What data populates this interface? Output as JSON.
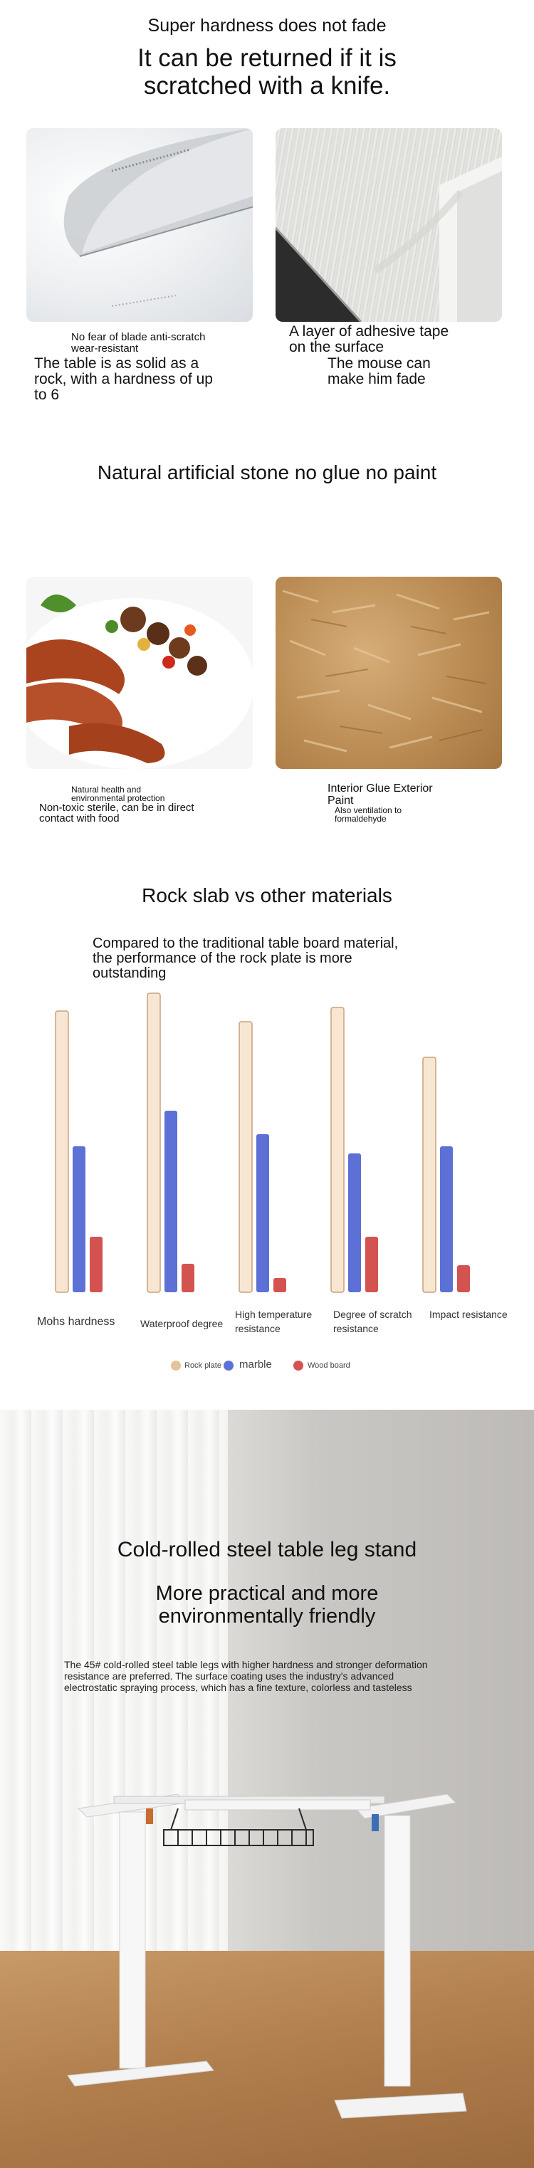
{
  "section1": {
    "kicker": "Super hardness does not fade",
    "headline_line1": "It can be returned if it is",
    "headline_line2": "scratched with a knife.",
    "left_caption_small_line1": "No fear of blade anti-scratch",
    "left_caption_small_line2": "wear-resistant",
    "left_caption_large_line1": "The table is as solid as a",
    "left_caption_large_line2": "rock, with a hardness of up",
    "left_caption_large_line3": "to 6",
    "right_caption_line1": "A layer of adhesive tape",
    "right_caption_line2": "on the surface",
    "right_caption_line3": "The mouse can",
    "right_caption_line4": "make him fade"
  },
  "section2": {
    "title": "Natural artificial stone no glue no paint",
    "left_caption_small_line1": "Natural health and",
    "left_caption_small_line2": "environmental protection",
    "left_caption_large_line1": "Non-toxic sterile, can be in direct",
    "left_caption_large_line2": "contact with food",
    "right_caption_large_line1": "Interior Glue Exterior",
    "right_caption_large_line2": "Paint",
    "right_caption_small_line1": "Also ventilation to",
    "right_caption_small_line2": "formaldehyde"
  },
  "section3": {
    "title": "Rock slab vs other materials",
    "subtitle_line1": "Compared to the traditional table board material,",
    "subtitle_line2": "the performance of the rock plate is more",
    "subtitle_line3": "outstanding",
    "chart_data": {
      "type": "bar",
      "categories": [
        "Mohs hardness",
        "Waterproof degree",
        "High temperature resistance",
        "Degree of scratch resistance",
        "Impact resistance"
      ],
      "category_lines": [
        [
          "Mohs hardness"
        ],
        [
          "Waterproof degree"
        ],
        [
          "High temperature",
          "resistance"
        ],
        [
          "Degree of scratch",
          "resistance"
        ],
        [
          "Impact resistance"
        ]
      ],
      "series": [
        {
          "name": "Rock plate",
          "color": "#f7e6d2",
          "values": [
            395,
            420,
            380,
            400,
            330
          ]
        },
        {
          "name": "marble",
          "color": "#5c70d6",
          "values": [
            205,
            255,
            222,
            195,
            205
          ]
        },
        {
          "name": "Wood board",
          "color": "#d4524f",
          "values": [
            78,
            40,
            20,
            78,
            38
          ]
        }
      ],
      "xlabel": "",
      "ylabel": "",
      "ylim": [
        0,
        420
      ],
      "grid": false,
      "legend_position": "bottom-center"
    }
  },
  "section4": {
    "title": "Cold-rolled steel table leg stand",
    "sub_line1": "More practical and more",
    "sub_line2": "environmentally friendly",
    "desc_line1": "The 45# cold-rolled steel table legs with higher hardness and stronger deformation",
    "desc_line2": "resistance are preferred. The surface coating uses the industry's advanced",
    "desc_line3": "electrostatic spraying process, which has a fine texture, colorless and tasteless"
  }
}
